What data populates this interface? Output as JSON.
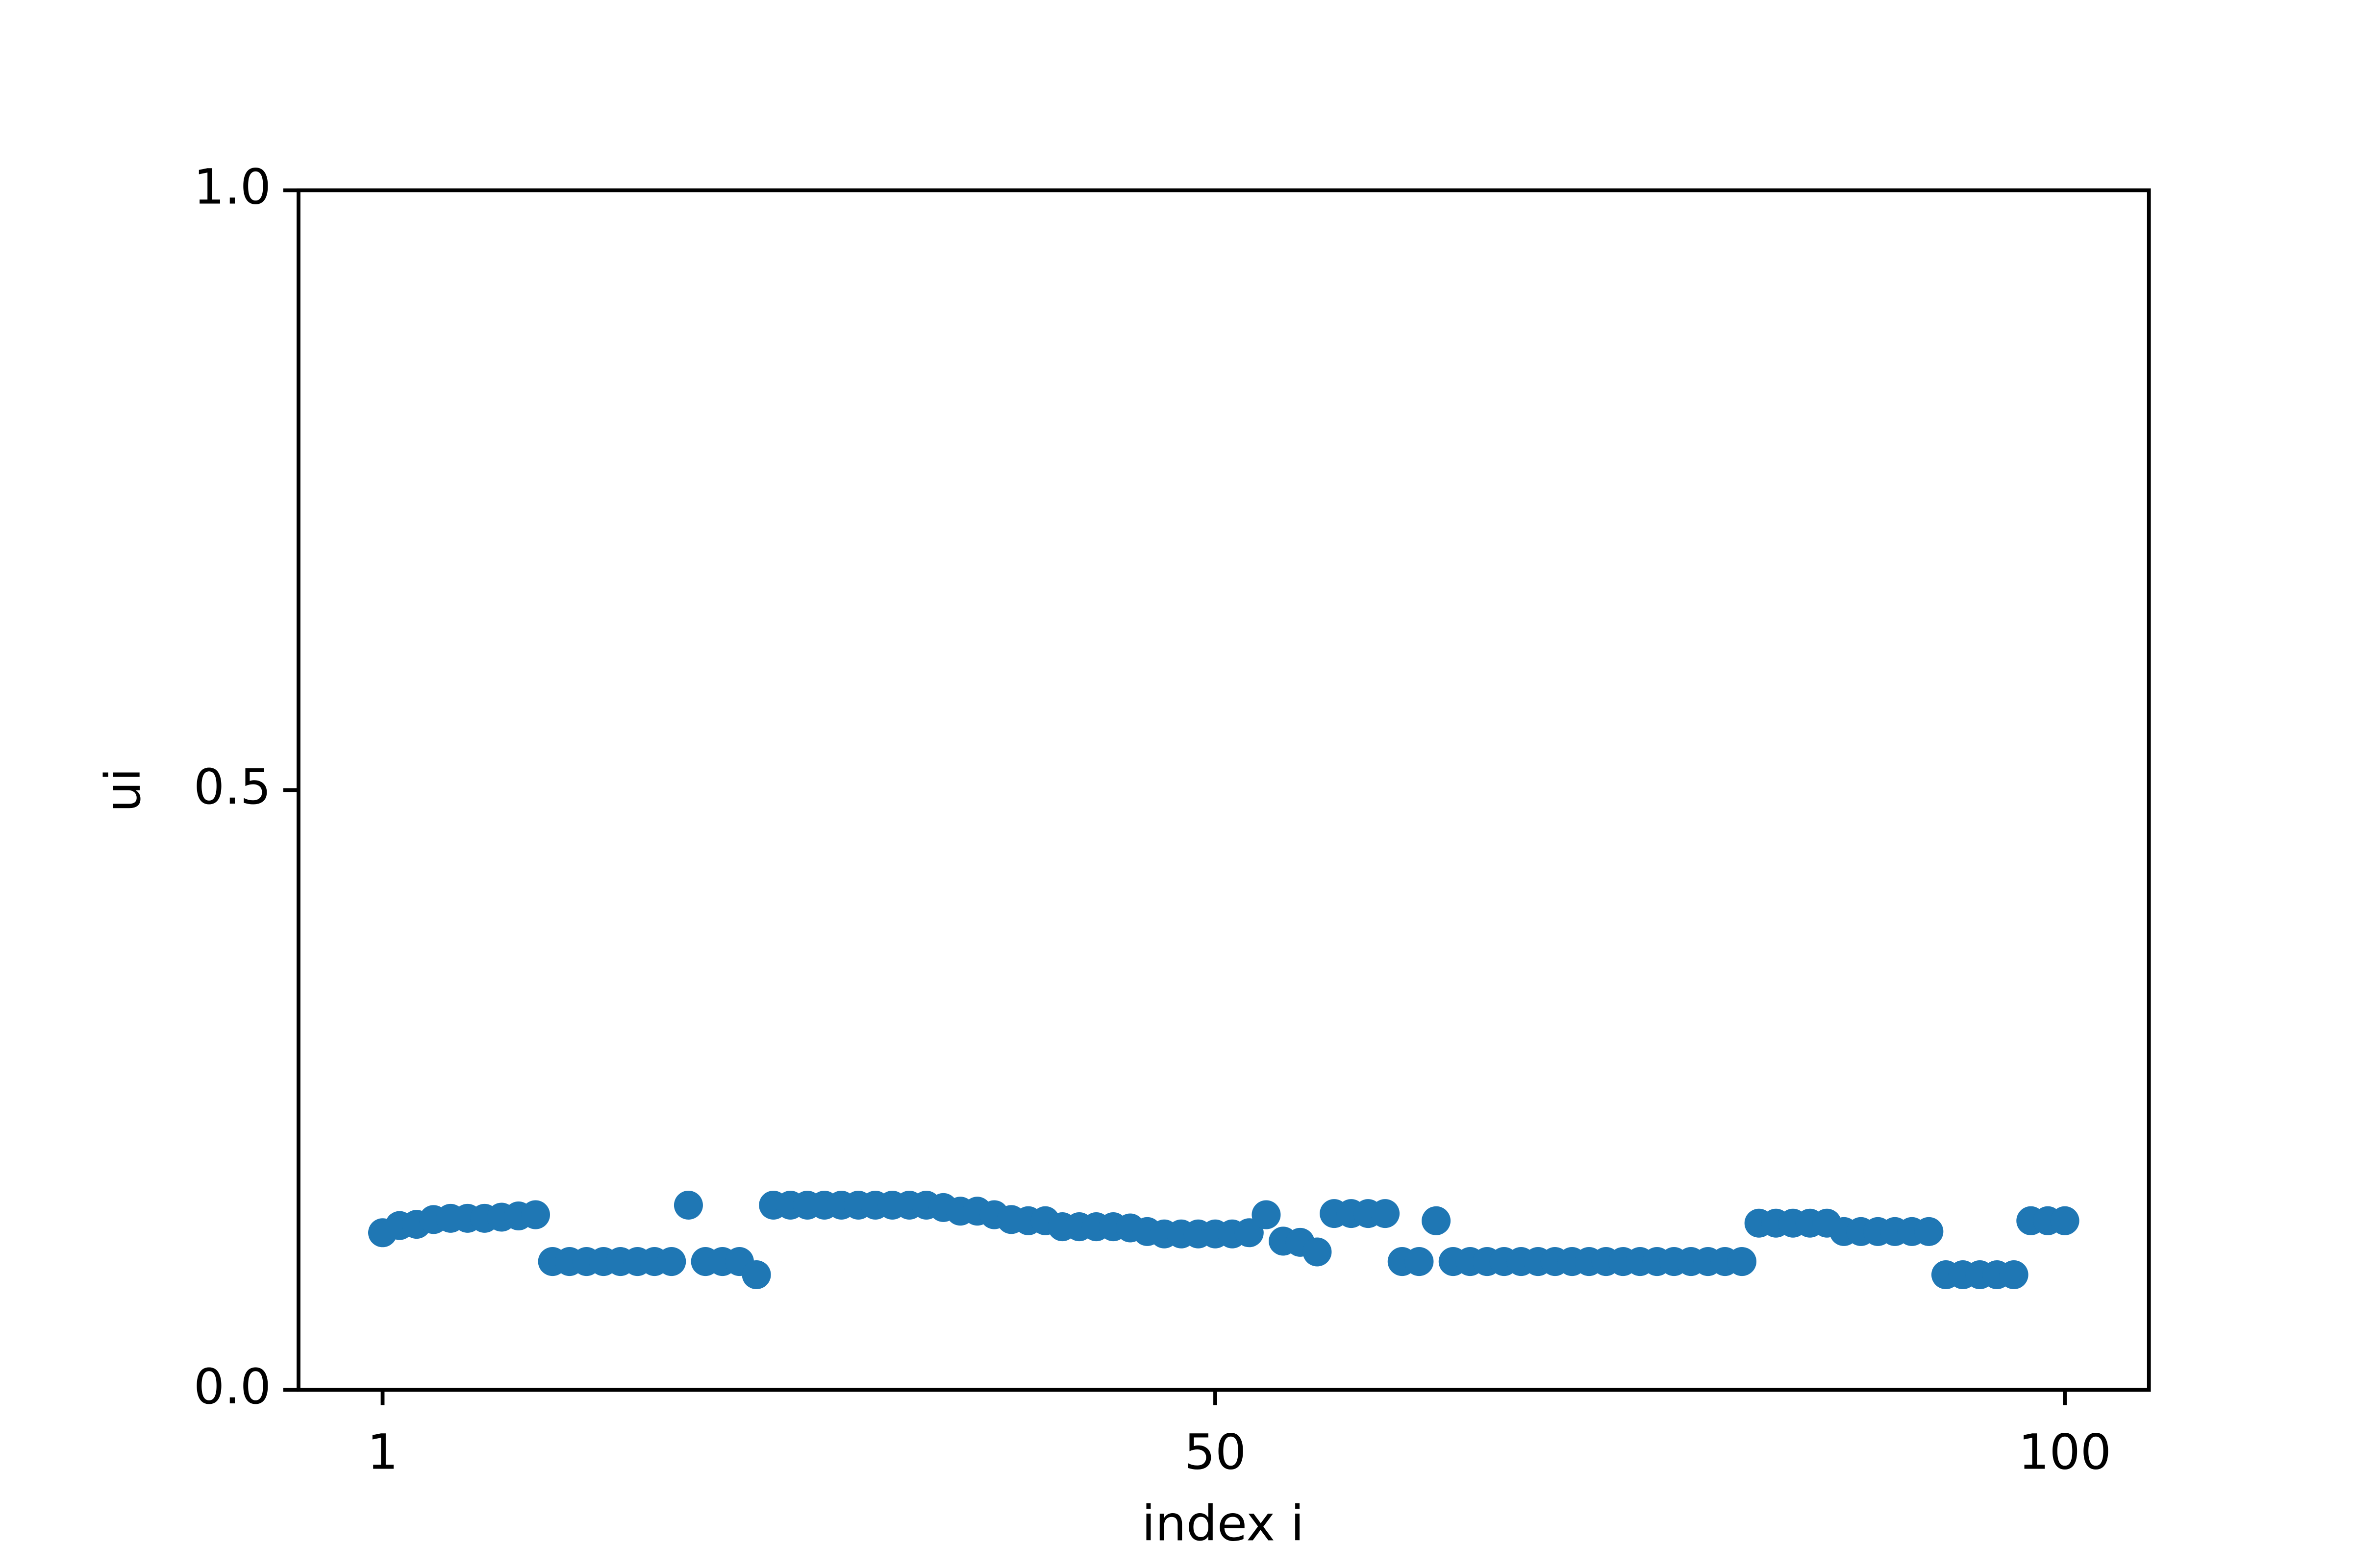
{
  "chart_data": {
    "type": "scatter",
    "xlabel": "index i",
    "ylabel": "ui",
    "color": "#1f77b4",
    "x": [
      1,
      2,
      3,
      4,
      5,
      6,
      7,
      8,
      9,
      10,
      11,
      12,
      13,
      14,
      15,
      16,
      17,
      18,
      19,
      20,
      21,
      22,
      23,
      24,
      25,
      26,
      27,
      28,
      29,
      30,
      31,
      32,
      33,
      34,
      35,
      36,
      37,
      38,
      39,
      40,
      41,
      42,
      43,
      44,
      45,
      46,
      47,
      48,
      49,
      50,
      51,
      52,
      53,
      54,
      55,
      56,
      57,
      58,
      59,
      60,
      61,
      62,
      63,
      64,
      65,
      66,
      67,
      68,
      69,
      70,
      71,
      72,
      73,
      74,
      75,
      76,
      77,
      78,
      79,
      80,
      81,
      82,
      83,
      84,
      85,
      86,
      87,
      88,
      89,
      90,
      91,
      92,
      93,
      94,
      95,
      96,
      97,
      98,
      99,
      100
    ],
    "values": [
      0.131,
      0.137,
      0.138,
      0.142,
      0.143,
      0.143,
      0.143,
      0.144,
      0.145,
      0.146,
      0.107,
      0.107,
      0.107,
      0.107,
      0.107,
      0.107,
      0.107,
      0.107,
      0.154,
      0.107,
      0.107,
      0.107,
      0.096,
      0.154,
      0.154,
      0.154,
      0.154,
      0.154,
      0.154,
      0.154,
      0.154,
      0.154,
      0.154,
      0.152,
      0.149,
      0.149,
      0.146,
      0.142,
      0.141,
      0.141,
      0.136,
      0.136,
      0.136,
      0.136,
      0.135,
      0.132,
      0.13,
      0.13,
      0.13,
      0.13,
      0.13,
      0.131,
      0.146,
      0.124,
      0.123,
      0.115,
      0.147,
      0.147,
      0.147,
      0.147,
      0.107,
      0.107,
      0.141,
      0.107,
      0.107,
      0.107,
      0.107,
      0.107,
      0.107,
      0.107,
      0.107,
      0.107,
      0.107,
      0.107,
      0.107,
      0.107,
      0.107,
      0.107,
      0.107,
      0.107,
      0.107,
      0.139,
      0.139,
      0.139,
      0.139,
      0.139,
      0.132,
      0.132,
      0.132,
      0.132,
      0.132,
      0.132,
      0.096,
      0.096,
      0.096,
      0.096,
      0.096,
      0.141,
      0.141,
      0.141
    ],
    "xlim": [
      -3.95,
      104.95
    ],
    "ylim": [
      0,
      1
    ],
    "xticks": [
      1,
      50,
      100
    ],
    "yticks": [
      {
        "value": 0,
        "label": "0.0"
      },
      0.5,
      {
        "value": 1,
        "label": "1.0"
      }
    ]
  }
}
